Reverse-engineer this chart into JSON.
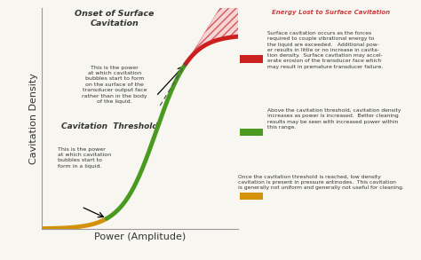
{
  "xlabel": "Power (Amplitude)",
  "ylabel": "Cavitation Density",
  "background_color": "#f7f6f1",
  "plot_bg_color": "#f7f6f1",
  "curve_colors": {
    "orange": "#d4920a",
    "green": "#4a9a20",
    "red": "#cc2020"
  },
  "hatch_color": "#d04040",
  "dashed_line_color": "#555555",
  "text_color": "#333333",
  "onset_title": "Onset of Surface\nCavitation",
  "onset_desc": "This is the power\nat which cavitation\nbubbles start to form\non the surface of the\ntransducer output face\nrather than in the body\nof the liquid.",
  "threshold_title": "Cavitation  Threshold",
  "threshold_desc": "This is the power\nat which cavitation\nbubbles start to\nform in a liquid.",
  "energy_lost_label": "Energy Lost to Surface Cavitation",
  "red_desc": "Surface cavitation occurs as the forces\nrequired to couple vibrational energy to\nthe liquid are exceeded.   Additional pow-\ner results in little or no increase in cavita-\ntion density.  Surface cavitation may accel-\nerate erosion of the transducer face which\nmay result in premature transducer failure.",
  "green_desc": "Above the cavitation threshold, cavitation density\nincreases as power is increased.  Better cleaning\nresults may be seen with increased power within\nthis range.",
  "orange_desc": "Once the cavitation threshold is reached, low density\ncavitation is present in pressure antinodes.  This cavitation\nis generally not uniform and generally not useful for cleaning."
}
